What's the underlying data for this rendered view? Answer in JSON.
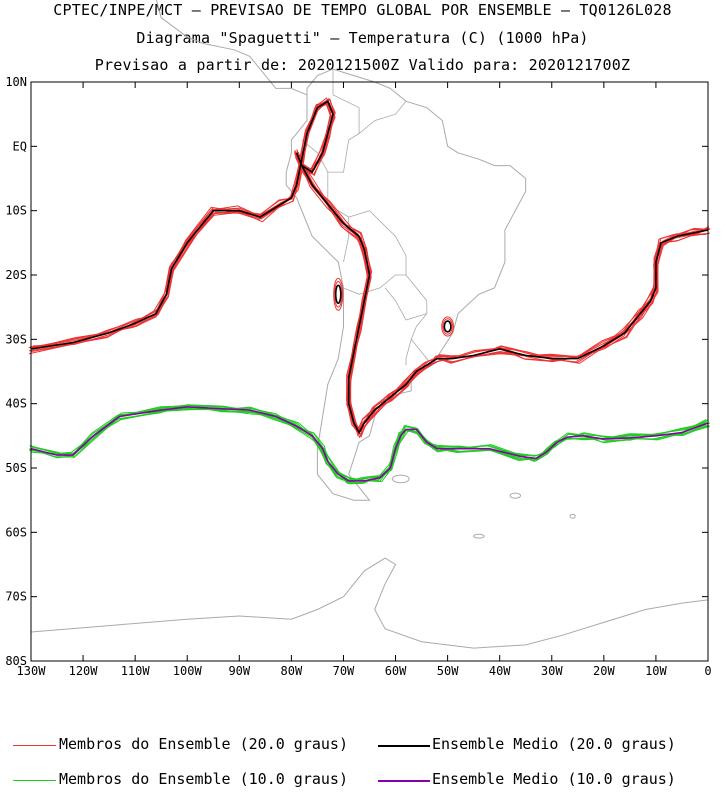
{
  "chart_data": {
    "type": "line",
    "title_lines": [
      "CPTEC/INPE/MCT – PREVISAO DE TEMPO GLOBAL POR ENSEMBLE – TQ0126L028",
      "Diagrama \"Spaguetti\" – Temperatura (C) (1000 hPa)",
      "Previsao a partir de: 2020121500Z  Valido para: 2020121700Z"
    ],
    "x_ticks": [
      "130W",
      "120W",
      "110W",
      "100W",
      "90W",
      "80W",
      "70W",
      "60W",
      "50W",
      "40W",
      "30W",
      "20W",
      "10W",
      "0"
    ],
    "y_ticks": [
      "10N",
      "EQ",
      "10S",
      "20S",
      "30S",
      "40S",
      "50S",
      "60S",
      "70S",
      "80S"
    ],
    "xlim": [
      -130,
      0
    ],
    "ylim": [
      -80,
      10
    ],
    "colors": {
      "member20": "#ee3333",
      "mean20": "#000000",
      "member10": "#22cc22",
      "mean10": "#8800aa",
      "map": "#aaaaaa"
    },
    "series": [
      {
        "name": "Ensemble Medio (20.0 graus)",
        "lon": [
          -130,
          -122,
          -115,
          -110,
          -106,
          -104,
          -103,
          -100,
          -95,
          -90,
          -86,
          -82,
          -80,
          -79,
          -78,
          -77,
          -75,
          -73,
          -72,
          -73,
          -74,
          -76,
          -78,
          -79,
          -78,
          -76,
          -73,
          -70,
          -67,
          -66,
          -65,
          -66,
          -67,
          -68,
          -69,
          -69,
          -68,
          -67,
          -66,
          -64,
          -61,
          -58,
          -56,
          -54,
          -52,
          -49,
          -45,
          -40,
          -35,
          -30,
          -25,
          -20,
          -16,
          -13,
          -11,
          -10,
          -10,
          -9,
          -6,
          -3,
          0
        ],
        "lat": [
          -31.5,
          -30.5,
          -29,
          -27.5,
          -26,
          -23,
          -19,
          -15,
          -10,
          -10,
          -11,
          -9,
          -8,
          -6,
          -2,
          2,
          6,
          7,
          5,
          2,
          -1,
          -4,
          -3,
          -1,
          -3,
          -6,
          -9,
          -12,
          -14,
          -16,
          -20,
          -24,
          -28,
          -32,
          -36,
          -40,
          -43,
          -44.5,
          -43,
          -41,
          -39,
          -37,
          -35,
          -34,
          -33,
          -33,
          -32.5,
          -31.5,
          -32.5,
          -33,
          -33,
          -31,
          -29,
          -26,
          -24,
          -22,
          -18,
          -15,
          -14,
          -13.5,
          -13
        ]
      },
      {
        "name": "Ensemble Medio (10.0 graus)",
        "lon": [
          -130,
          -125,
          -122,
          -118,
          -113,
          -105,
          -100,
          -93,
          -88,
          -83,
          -79,
          -76,
          -74,
          -73,
          -71,
          -69,
          -66,
          -63,
          -61,
          -60,
          -59,
          -58,
          -56,
          -54,
          -52,
          -48,
          -42,
          -36,
          -33,
          -31,
          -29,
          -27,
          -24,
          -20,
          -15,
          -10,
          -5,
          0
        ],
        "lat": [
          -47,
          -48,
          -48,
          -45,
          -42,
          -41,
          -40.5,
          -40.8,
          -41,
          -42,
          -43.5,
          -45,
          -47,
          -49,
          -51,
          -52,
          -52,
          -51.5,
          -50,
          -47,
          -45,
          -44,
          -44,
          -46,
          -47,
          -47,
          -47,
          -48.2,
          -48.5,
          -47.5,
          -46,
          -45.2,
          -45,
          -45.5,
          -45.3,
          -45,
          -44.5,
          -43
        ]
      }
    ],
    "small_contours_20": [
      {
        "lon": -71,
        "lat": -23,
        "rx": 0.7,
        "ry": 2.0
      },
      {
        "lon": -50,
        "lat": -28,
        "rx": 0.9,
        "ry": 1.2
      }
    ],
    "legend": [
      "Membros do Ensemble (20.0 graus)",
      "Ensemble Medio (20.0 graus)",
      "Membros do Ensemble (10.0 graus)",
      "Ensemble Medio (10.0 graus)"
    ]
  }
}
